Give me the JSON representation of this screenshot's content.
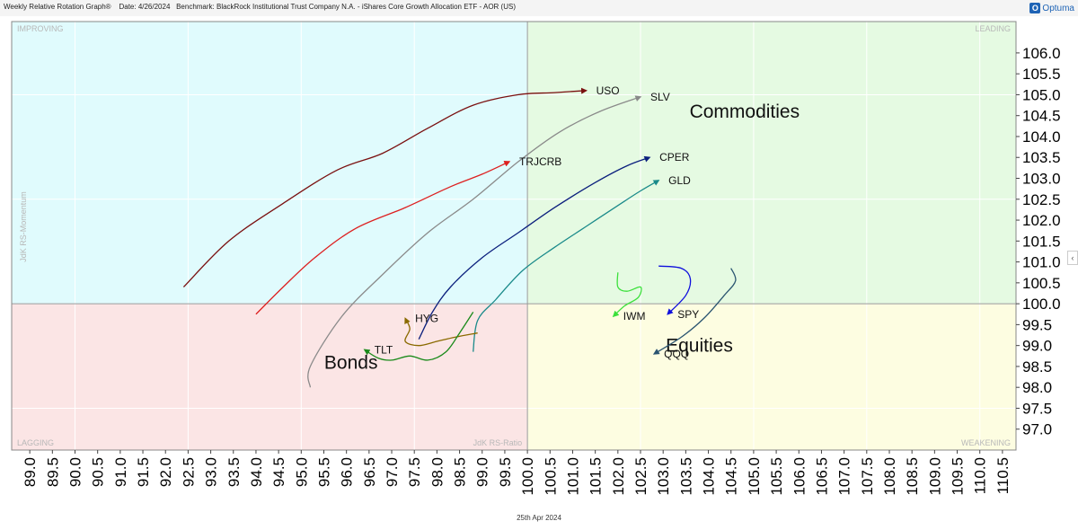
{
  "header": {
    "title": "Weekly Relative Rotation Graph®",
    "date": "Date: 4/26/2024",
    "benchmark": "Benchmark: BlackRock Institutional Trust Company N.A. - iShares Core Growth Allocation ETF - AOR (US)",
    "logo_text": "Optuma"
  },
  "footer": {
    "date": "25th Apr 2024"
  },
  "chart_data": {
    "type": "scatter",
    "title": "",
    "xlabel": "JdK RS-Ratio",
    "ylabel": "JdK RS-Momentum",
    "xlim": [
      88.6,
      110.8
    ],
    "ylim": [
      96.5,
      106.75
    ],
    "x_ticks": [
      "89.0",
      "89.5",
      "90.0",
      "90.5",
      "91.0",
      "91.5",
      "92.0",
      "92.5",
      "93.0",
      "93.5",
      "94.0",
      "94.5",
      "95.0",
      "95.5",
      "96.0",
      "96.5",
      "97.0",
      "97.5",
      "98.0",
      "98.5",
      "99.0",
      "99.5",
      "100.0",
      "100.5",
      "101.0",
      "101.5",
      "102.0",
      "102.5",
      "103.0",
      "103.5",
      "104.0",
      "104.5",
      "105.0",
      "105.5",
      "106.0",
      "106.5",
      "107.0",
      "107.5",
      "108.0",
      "108.5",
      "109.0",
      "109.5",
      "110.0",
      "110.5"
    ],
    "y_ticks": [
      "97.0",
      "97.5",
      "98.0",
      "98.5",
      "99.0",
      "99.5",
      "100.0",
      "100.5",
      "101.0",
      "101.5",
      "102.0",
      "102.5",
      "103.0",
      "103.5",
      "104.0",
      "104.5",
      "105.0",
      "105.5",
      "106.0"
    ],
    "grid": true,
    "quadrants": [
      {
        "name": "IMPROVING",
        "position": "top-left",
        "color": "#e0fbfd"
      },
      {
        "name": "LEADING",
        "position": "top-right",
        "color": "#e5fae2"
      },
      {
        "name": "LAGGING",
        "position": "bottom-left",
        "color": "#fbe5e5"
      },
      {
        "name": "WEAKENING",
        "position": "bottom-right",
        "color": "#fdfde1"
      }
    ],
    "annotations": [
      {
        "text": "Commodities",
        "x": 104.8,
        "y": 104.45
      },
      {
        "text": "Equities",
        "x": 103.8,
        "y": 98.85
      },
      {
        "text": "Bonds",
        "x": 96.1,
        "y": 98.45
      }
    ],
    "series": [
      {
        "name": "USO",
        "color": "#7a1010",
        "points": [
          [
            92.4,
            100.4
          ],
          [
            93.4,
            101.5
          ],
          [
            94.6,
            102.4
          ],
          [
            95.8,
            103.2
          ],
          [
            96.8,
            103.6
          ],
          [
            97.8,
            104.2
          ],
          [
            98.8,
            104.75
          ],
          [
            99.8,
            105.0
          ],
          [
            100.6,
            105.05
          ],
          [
            101.3,
            105.1
          ]
        ]
      },
      {
        "name": "SLV",
        "color": "#8a8a8a",
        "points": [
          [
            95.2,
            98.0
          ],
          [
            95.2,
            98.5
          ],
          [
            95.9,
            99.7
          ],
          [
            96.8,
            100.7
          ],
          [
            97.8,
            101.7
          ],
          [
            98.8,
            102.5
          ],
          [
            99.8,
            103.4
          ],
          [
            100.7,
            104.1
          ],
          [
            101.6,
            104.6
          ],
          [
            102.5,
            104.95
          ]
        ]
      },
      {
        "name": "TRJCRB",
        "color": "#dd2020",
        "points": [
          [
            94.0,
            99.75
          ],
          [
            94.6,
            100.4
          ],
          [
            95.3,
            101.1
          ],
          [
            96.2,
            101.8
          ],
          [
            97.3,
            102.3
          ],
          [
            98.3,
            102.8
          ],
          [
            99.0,
            103.1
          ],
          [
            99.6,
            103.4
          ]
        ]
      },
      {
        "name": "CPER",
        "color": "#0b1f7d",
        "points": [
          [
            97.6,
            99.15
          ],
          [
            97.9,
            99.8
          ],
          [
            98.3,
            100.4
          ],
          [
            99.0,
            101.1
          ],
          [
            99.8,
            101.7
          ],
          [
            100.6,
            102.3
          ],
          [
            101.5,
            102.9
          ],
          [
            102.2,
            103.3
          ],
          [
            102.7,
            103.5
          ]
        ]
      },
      {
        "name": "GLD",
        "color": "#1a8a8a",
        "points": [
          [
            98.8,
            98.85
          ],
          [
            98.9,
            99.6
          ],
          [
            99.3,
            100.1
          ],
          [
            99.9,
            100.8
          ],
          [
            100.6,
            101.35
          ],
          [
            101.3,
            101.85
          ],
          [
            102.0,
            102.35
          ],
          [
            102.5,
            102.7
          ],
          [
            102.9,
            102.95
          ]
        ]
      },
      {
        "name": "IWM",
        "color": "#3be03b",
        "points": [
          [
            102.0,
            100.75
          ],
          [
            102.0,
            100.4
          ],
          [
            102.2,
            100.3
          ],
          [
            102.5,
            100.4
          ],
          [
            102.45,
            100.15
          ],
          [
            102.15,
            99.95
          ],
          [
            101.9,
            99.7
          ]
        ]
      },
      {
        "name": "SPY",
        "color": "#1010dd",
        "points": [
          [
            102.9,
            100.9
          ],
          [
            103.4,
            100.85
          ],
          [
            103.6,
            100.6
          ],
          [
            103.5,
            100.2
          ],
          [
            103.1,
            99.75
          ]
        ]
      },
      {
        "name": "QQQ",
        "color": "#2a5470",
        "points": [
          [
            104.5,
            100.85
          ],
          [
            104.6,
            100.55
          ],
          [
            104.35,
            100.2
          ],
          [
            103.9,
            99.65
          ],
          [
            103.4,
            99.2
          ],
          [
            102.8,
            98.8
          ]
        ]
      },
      {
        "name": "HYG",
        "color": "#8a6a00",
        "points": [
          [
            98.9,
            99.3
          ],
          [
            98.4,
            99.2
          ],
          [
            98.0,
            99.1
          ],
          [
            97.6,
            99.0
          ],
          [
            97.3,
            99.1
          ],
          [
            97.4,
            99.4
          ],
          [
            97.3,
            99.65
          ]
        ]
      },
      {
        "name": "TLT",
        "color": "#1a8a1a",
        "points": [
          [
            98.8,
            99.8
          ],
          [
            98.5,
            99.3
          ],
          [
            98.2,
            98.85
          ],
          [
            97.8,
            98.65
          ],
          [
            97.4,
            98.75
          ],
          [
            97.0,
            98.65
          ],
          [
            96.7,
            98.7
          ],
          [
            96.4,
            98.9
          ]
        ]
      }
    ]
  }
}
